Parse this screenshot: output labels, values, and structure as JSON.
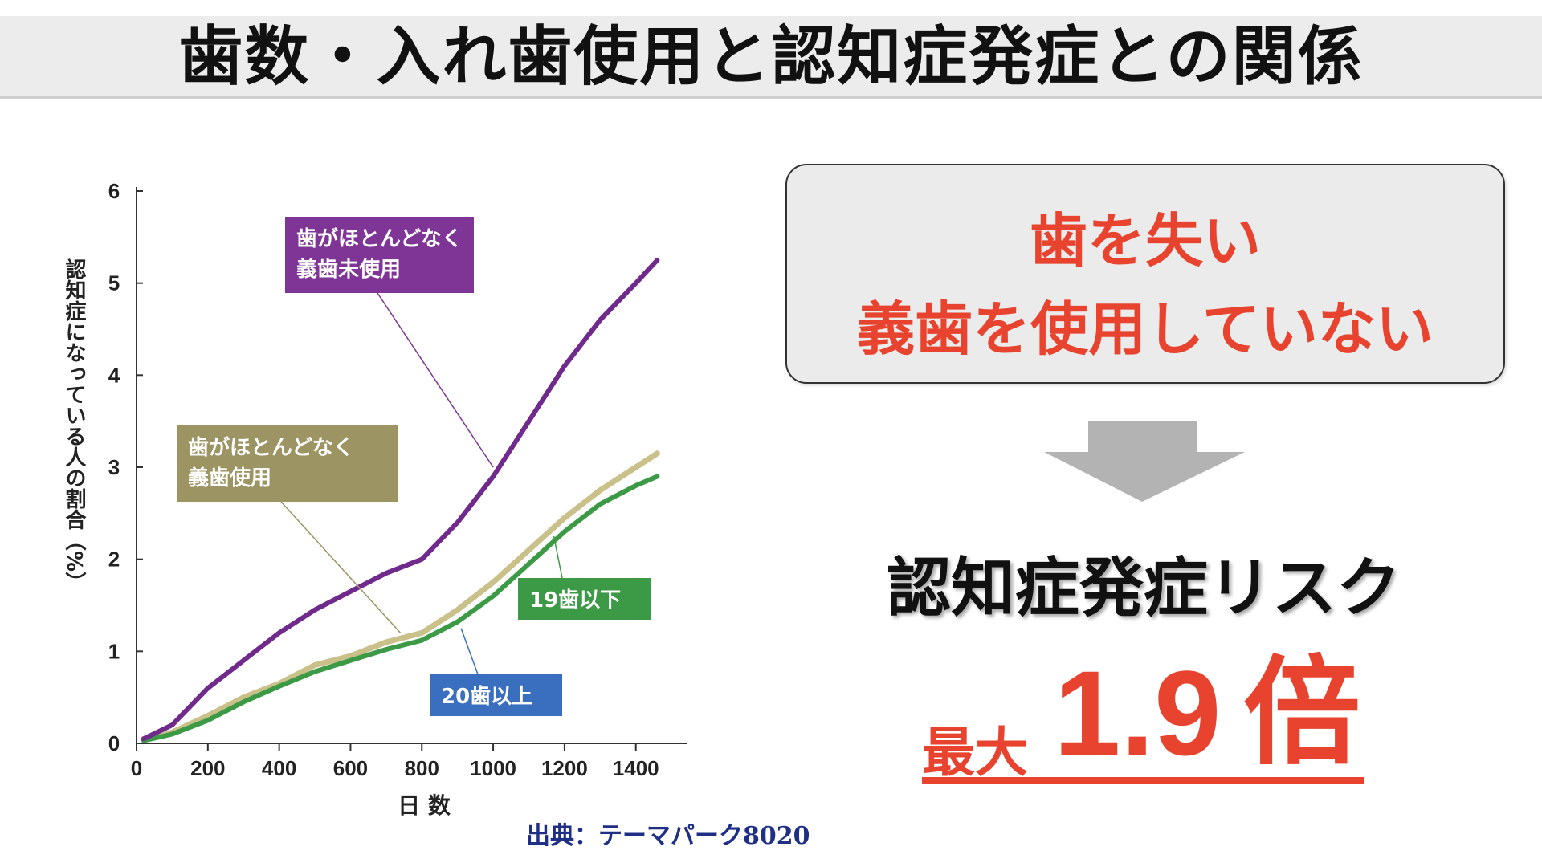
{
  "page": {
    "title": "歯数・入れ歯使用と認知症発症との関係",
    "source": "出典：テーマパーク8020"
  },
  "callout": {
    "line1": "歯を失い",
    "line2": "義歯を使用していない"
  },
  "risk": {
    "label": "認知症発症リスク",
    "max_label": "最大",
    "value": "1.9",
    "unit": "倍"
  },
  "colors": {
    "accent_red": "#e8432e",
    "purple": "#6f2a8c",
    "khaki": "#9c9463",
    "green": "#3c9a47",
    "blue": "#3a6fc0",
    "source_blue": "#1f2f86"
  },
  "chart_data": {
    "type": "line",
    "title": "",
    "xlabel": "日 数",
    "ylabel": "認知症になっている人の割合（%）",
    "xlim": [
      0,
      1520
    ],
    "ylim": [
      0,
      6
    ],
    "x_ticks": [
      0,
      200,
      400,
      600,
      800,
      1000,
      1200,
      1400
    ],
    "y_ticks": [
      0,
      1,
      2,
      3,
      4,
      5,
      6
    ],
    "grid": false,
    "series": [
      {
        "name": "歯がほとんどなく 義歯未使用",
        "label_lines": [
          "歯がほとんどなく",
          "義歯未使用"
        ],
        "color": "#6f2a8c",
        "x": [
          20,
          100,
          200,
          300,
          400,
          500,
          600,
          700,
          800,
          900,
          1000,
          1100,
          1200,
          1300,
          1400,
          1460
        ],
        "y": [
          0.05,
          0.2,
          0.6,
          0.9,
          1.2,
          1.45,
          1.65,
          1.85,
          2.0,
          2.4,
          2.9,
          3.5,
          4.1,
          4.6,
          5.0,
          5.25
        ]
      },
      {
        "name": "歯がほとんどなく 義歯使用",
        "label_lines": [
          "歯がほとんどなく",
          "義歯使用"
        ],
        "color": "#c9c08a",
        "x": [
          20,
          100,
          200,
          300,
          400,
          500,
          600,
          700,
          800,
          900,
          1000,
          1100,
          1200,
          1300,
          1400,
          1460
        ],
        "y": [
          0.05,
          0.12,
          0.3,
          0.5,
          0.65,
          0.85,
          0.95,
          1.1,
          1.2,
          1.45,
          1.75,
          2.1,
          2.45,
          2.75,
          3.0,
          3.15
        ]
      },
      {
        "name": "19歯以下",
        "label_lines": [
          "19歯以下"
        ],
        "color": "#3c9a47",
        "x": [
          20,
          100,
          200,
          300,
          400,
          500,
          600,
          700,
          800,
          900,
          1000,
          1100,
          1200,
          1300,
          1400,
          1460
        ],
        "y": [
          0.03,
          0.1,
          0.25,
          0.45,
          0.62,
          0.78,
          0.9,
          1.02,
          1.12,
          1.32,
          1.6,
          1.95,
          2.3,
          2.6,
          2.8,
          2.9
        ]
      }
    ],
    "annotations": [
      {
        "text": "20歯以上",
        "color": "#3a6fc0"
      }
    ]
  }
}
